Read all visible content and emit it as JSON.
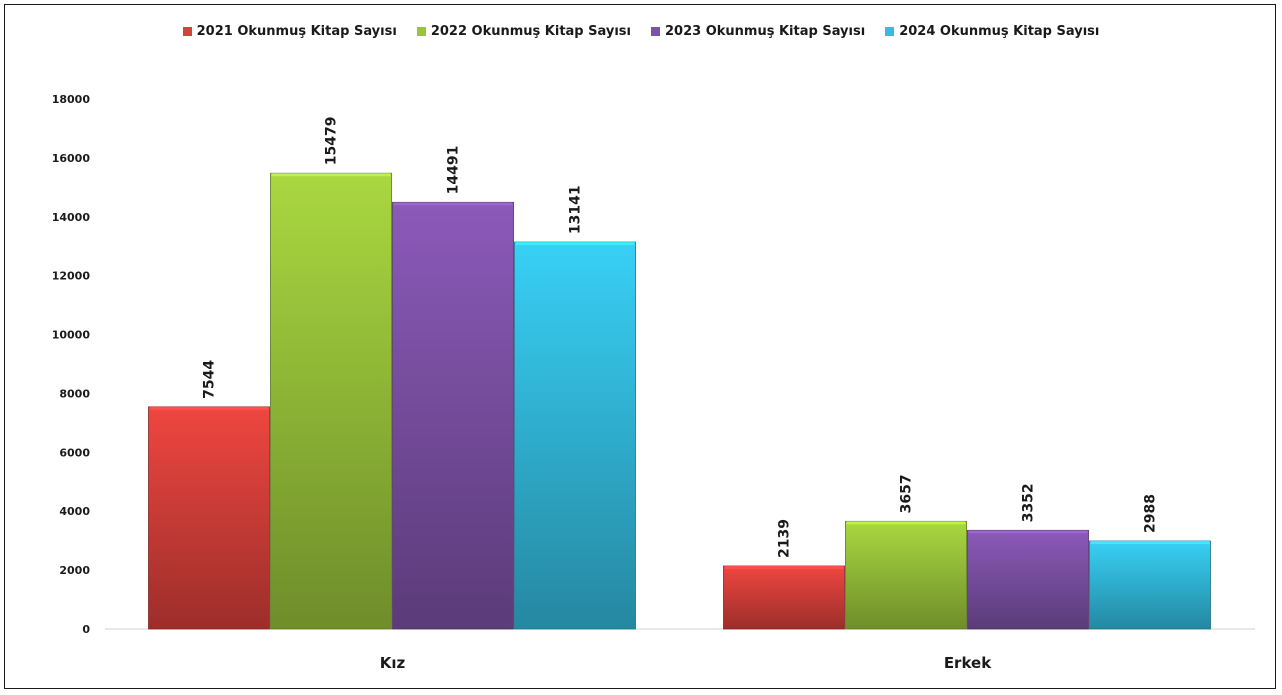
{
  "chart_data": {
    "type": "bar",
    "categories": [
      "Kız",
      "Erkek"
    ],
    "series": [
      {
        "name": "2021 Okunmuş Kitap Sayısı",
        "values": [
          7544,
          2139
        ],
        "color": "#d9403a"
      },
      {
        "name": "2022 Okunmuş Kitap Sayısı",
        "values": [
          15479,
          3657
        ],
        "color": "#9ac43a"
      },
      {
        "name": "2023 Okunmuş Kitap Sayısı",
        "values": [
          14491,
          3352
        ],
        "color": "#7e52a8"
      },
      {
        "name": "2024 Okunmuş Kitap Sayısı",
        "values": [
          13141,
          2988
        ],
        "color": "#33bde0"
      }
    ],
    "ylim": [
      0,
      18000
    ],
    "yticks": [
      0,
      2000,
      4000,
      6000,
      8000,
      10000,
      12000,
      14000,
      16000,
      18000
    ],
    "grid": false,
    "legend_position": "top",
    "data_labels": "rotated-vertical"
  }
}
